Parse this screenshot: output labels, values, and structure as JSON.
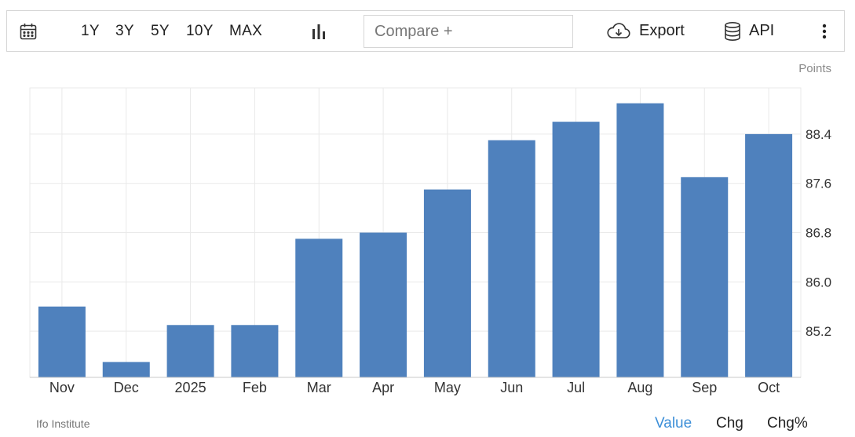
{
  "toolbar": {
    "ranges": [
      "1Y",
      "3Y",
      "5Y",
      "10Y",
      "MAX"
    ],
    "compare_placeholder": "Compare +",
    "export_label": "Export",
    "api_label": "API",
    "icons": [
      "calendar-icon",
      "bar-chart-icon",
      "cloud-download-icon",
      "database-icon",
      "more-vertical-icon"
    ]
  },
  "footer": {
    "source": "Ifo Institute",
    "tabs": [
      "Value",
      "Chg",
      "Chg%"
    ],
    "active_tab": "Value"
  },
  "colors": {
    "bar": "#4f81bd",
    "grid": "#e9e9e9",
    "active_tab": "#3d8fd8"
  },
  "chart_data": {
    "type": "bar",
    "unit": "Points",
    "categories": [
      "Nov",
      "Dec",
      "2025",
      "Feb",
      "Mar",
      "Apr",
      "May",
      "Jun",
      "Jul",
      "Aug",
      "Sep",
      "Oct"
    ],
    "values": [
      85.6,
      84.7,
      85.3,
      85.3,
      86.7,
      86.8,
      87.5,
      88.3,
      88.6,
      88.9,
      87.7,
      88.4
    ],
    "yticks": [
      85.2,
      86.0,
      86.8,
      87.6,
      88.4
    ],
    "ylim": [
      84.45,
      89.15
    ],
    "grid": true,
    "y_axis_position": "right"
  }
}
